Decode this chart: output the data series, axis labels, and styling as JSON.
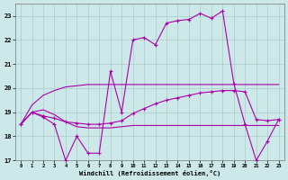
{
  "xlabel": "Windchill (Refroidissement éolien,°C)",
  "xlim": [
    -0.5,
    23.5
  ],
  "ylim": [
    17,
    23.5
  ],
  "yticks": [
    17,
    18,
    19,
    20,
    21,
    22,
    23
  ],
  "xticks": [
    0,
    1,
    2,
    3,
    4,
    5,
    6,
    7,
    8,
    9,
    10,
    11,
    12,
    13,
    14,
    15,
    16,
    17,
    18,
    19,
    20,
    21,
    22,
    23
  ],
  "bg_color": "#cce8e8",
  "line_color": "#aa00aa",
  "grid_color": "#aacccc",
  "line1_x": [
    0,
    1,
    2,
    3,
    4,
    5,
    6,
    7,
    8,
    9,
    10,
    11,
    12,
    13,
    14,
    15,
    16,
    17,
    18,
    19,
    20,
    21,
    22,
    23
  ],
  "line1_y": [
    18.5,
    19.0,
    18.8,
    18.5,
    17.0,
    18.0,
    17.3,
    17.3,
    20.7,
    19.0,
    22.0,
    22.1,
    21.8,
    22.7,
    22.8,
    22.85,
    23.1,
    22.9,
    23.2,
    20.2,
    18.5,
    17.0,
    17.8,
    18.7
  ],
  "line2_x": [
    0,
    1,
    2,
    3,
    4,
    5,
    6,
    7,
    8,
    9,
    10,
    11,
    12,
    13,
    14,
    15,
    16,
    17,
    18,
    19,
    20,
    21,
    22,
    23
  ],
  "line2_y": [
    18.5,
    19.0,
    18.85,
    18.75,
    18.6,
    18.55,
    18.5,
    18.5,
    18.55,
    18.65,
    18.95,
    19.15,
    19.35,
    19.5,
    19.6,
    19.7,
    19.8,
    19.85,
    19.9,
    19.9,
    19.85,
    18.7,
    18.65,
    18.7
  ],
  "line3_x": [
    0,
    1,
    2,
    3,
    4,
    5,
    6,
    7,
    8,
    9,
    10,
    11,
    12,
    13,
    14,
    15,
    16,
    17,
    18,
    19,
    20,
    21,
    22,
    23
  ],
  "line3_y": [
    18.5,
    19.0,
    19.1,
    18.9,
    18.6,
    18.4,
    18.35,
    18.35,
    18.35,
    18.4,
    18.45,
    18.45,
    18.45,
    18.45,
    18.45,
    18.45,
    18.45,
    18.45,
    18.45,
    18.45,
    18.45,
    18.45,
    18.45,
    18.45
  ],
  "line4_x": [
    0,
    1,
    2,
    3,
    4,
    5,
    6,
    7,
    8,
    9,
    10,
    11,
    12,
    13,
    14,
    15,
    16,
    17,
    18,
    19,
    20,
    21,
    22,
    23
  ],
  "line4_y": [
    18.5,
    19.3,
    19.7,
    19.9,
    20.05,
    20.1,
    20.15,
    20.15,
    20.15,
    20.15,
    20.15,
    20.15,
    20.15,
    20.15,
    20.15,
    20.15,
    20.15,
    20.15,
    20.15,
    20.15,
    20.15,
    20.15,
    20.15,
    20.15
  ]
}
